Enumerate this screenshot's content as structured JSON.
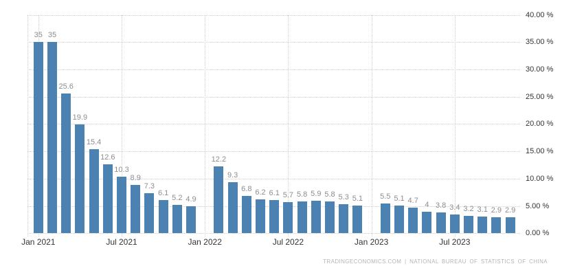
{
  "chart_data": {
    "type": "bar",
    "title": "",
    "unit": "%",
    "bar_color": "#4c82b2",
    "value_label_color": "#8d8d8d",
    "axis_label_color": "#333333",
    "grid_color": "#cfcfcf",
    "grid": "dotted",
    "legend": "none",
    "ylim": [
      0,
      40
    ],
    "y_tick_labels": [
      "0.00 %",
      "5.00 %",
      "10.00 %",
      "15.00 %",
      "20.00 %",
      "25.00 %",
      "30.00 %",
      "35.00 %",
      "40.00 %"
    ],
    "x_tick_labels": [
      "Jan 2021",
      "Jul 2021",
      "Jan 2022",
      "Jul 2022",
      "Jan 2023",
      "Jul 2023"
    ],
    "points": [
      {
        "month": "Jan 2021",
        "value": 35
      },
      {
        "month": "Feb 2021",
        "value": 35
      },
      {
        "month": "Mar 2021",
        "value": 25.6
      },
      {
        "month": "Apr 2021",
        "value": 19.9
      },
      {
        "month": "May 2021",
        "value": 15.4
      },
      {
        "month": "Jun 2021",
        "value": 12.6
      },
      {
        "month": "Jul 2021",
        "value": 10.3
      },
      {
        "month": "Aug 2021",
        "value": 8.9
      },
      {
        "month": "Sep 2021",
        "value": 7.3
      },
      {
        "month": "Oct 2021",
        "value": 6.1
      },
      {
        "month": "Nov 2021",
        "value": 5.2
      },
      {
        "month": "Dec 2021",
        "value": 4.9
      },
      {
        "month": "Feb 2022",
        "value": 12.2
      },
      {
        "month": "Mar 2022",
        "value": 9.3
      },
      {
        "month": "Apr 2022",
        "value": 6.8
      },
      {
        "month": "May 2022",
        "value": 6.2
      },
      {
        "month": "Jun 2022",
        "value": 6.1
      },
      {
        "month": "Jul 2022",
        "value": 5.7
      },
      {
        "month": "Aug 2022",
        "value": 5.8
      },
      {
        "month": "Sep 2022",
        "value": 5.9
      },
      {
        "month": "Oct 2022",
        "value": 5.8
      },
      {
        "month": "Nov 2022",
        "value": 5.3
      },
      {
        "month": "Dec 2022",
        "value": 5.1
      },
      {
        "month": "Feb 2023",
        "value": 5.5
      },
      {
        "month": "Mar 2023",
        "value": 5.1
      },
      {
        "month": "Apr 2023",
        "value": 4.7
      },
      {
        "month": "May 2023",
        "value": 4
      },
      {
        "month": "Jun 2023",
        "value": 3.8
      },
      {
        "month": "Jul 2023",
        "value": 3.4
      },
      {
        "month": "Aug 2023",
        "value": 3.2
      },
      {
        "month": "Sep 2023",
        "value": 3.1
      },
      {
        "month": "Oct 2023",
        "value": 2.9
      },
      {
        "month": "Nov 2023",
        "value": 2.9
      }
    ]
  },
  "footer": {
    "attribution": "TRADINGECONOMICS.COM | NATIONAL BUREAU OF STATISTICS OF CHINA"
  }
}
